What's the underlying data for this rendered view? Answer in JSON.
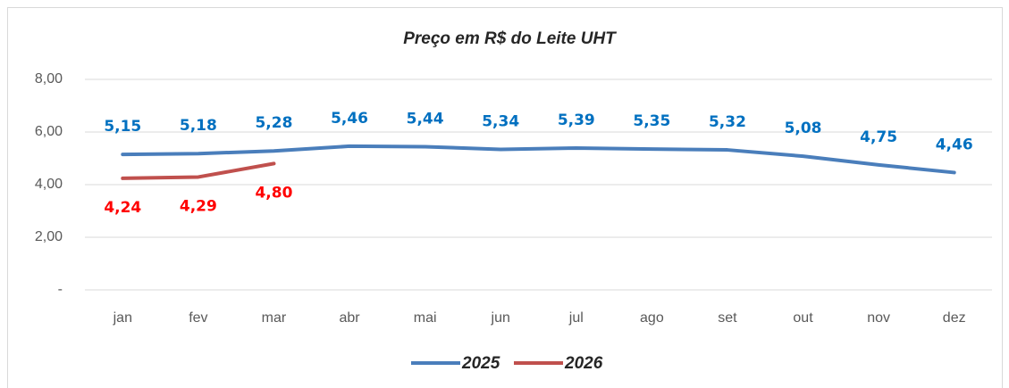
{
  "chart_data": {
    "type": "line",
    "title": "Preço em R$ do Leite UHT",
    "categories": [
      "jan",
      "fev",
      "mar",
      "abr",
      "mai",
      "jun",
      "jul",
      "ago",
      "set",
      "out",
      "nov",
      "dez"
    ],
    "series": [
      {
        "name": "2025",
        "color": "#4a7ebb",
        "label_color": "#0070c0",
        "label_position": "above",
        "values": [
          5.15,
          5.18,
          5.28,
          5.46,
          5.44,
          5.34,
          5.39,
          5.35,
          5.32,
          5.08,
          4.75,
          4.46
        ],
        "value_labels": [
          "5,15",
          "5,18",
          "5,28",
          "5,46",
          "5,44",
          "5,34",
          "5,39",
          "5,35",
          "5,32",
          "5,08",
          "4,75",
          "4,46"
        ]
      },
      {
        "name": "2026",
        "color": "#c0504d",
        "label_color": "#ff0000",
        "label_position": "below",
        "values": [
          4.24,
          4.29,
          4.8,
          null,
          null,
          null,
          null,
          null,
          null,
          null,
          null,
          null
        ],
        "value_labels": [
          "4,24",
          "4,29",
          "4,80",
          null,
          null,
          null,
          null,
          null,
          null,
          null,
          null,
          null
        ]
      }
    ],
    "ylim": [
      0,
      8
    ],
    "yticks": [
      {
        "value": 0,
        "label": "-"
      },
      {
        "value": 2,
        "label": "2,00"
      },
      {
        "value": 4,
        "label": "4,00"
      },
      {
        "value": 6,
        "label": "6,00"
      },
      {
        "value": 8,
        "label": "8,00"
      }
    ],
    "grid": true,
    "legend": "bottom"
  }
}
